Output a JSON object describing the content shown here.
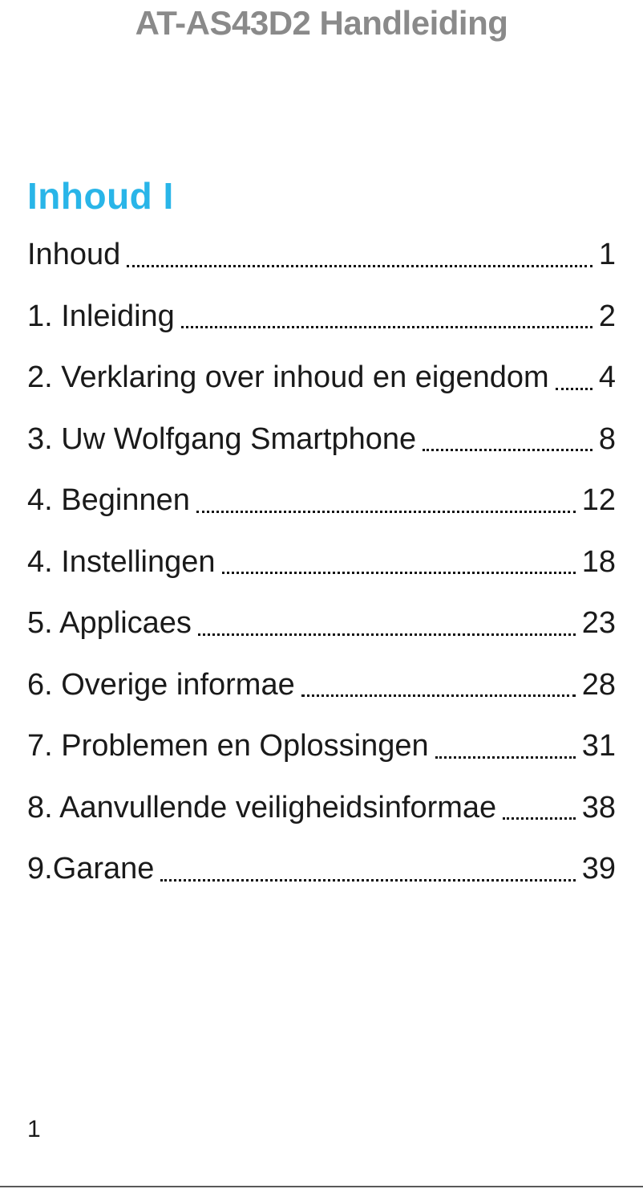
{
  "page": {
    "title": "AT-AS43D2 Handleiding",
    "section_heading": "Inhoud I",
    "footer_page_number": "1"
  },
  "toc": {
    "entries": [
      {
        "label": "Inhoud",
        "page": "1"
      },
      {
        "label": "1. Inleiding",
        "page": "2"
      },
      {
        "label": "2. Verklaring over inhoud en eigendom",
        "page": "4"
      },
      {
        "label": "3. Uw Wolfgang Smartphone",
        "page": "8"
      },
      {
        "label": "4. Beginnen",
        "page": "12"
      },
      {
        "label": "4. Instellingen",
        "page": "18"
      },
      {
        "label": "5. Applicaes",
        "page": "23"
      },
      {
        "label": "6. Overige informae",
        "page": "28"
      },
      {
        "label": "7. Problemen en Oplossingen",
        "page": "31"
      },
      {
        "label": "8. Aanvullende veiligheidsinformae",
        "page": "38"
      },
      {
        "label": "9.Garane",
        "page": "39"
      }
    ]
  },
  "colors": {
    "accent_cyan": "#29b5e8",
    "title_gray": "#8a8a8a",
    "text": "#1a1a1a",
    "bottom_rule": "#595959"
  }
}
